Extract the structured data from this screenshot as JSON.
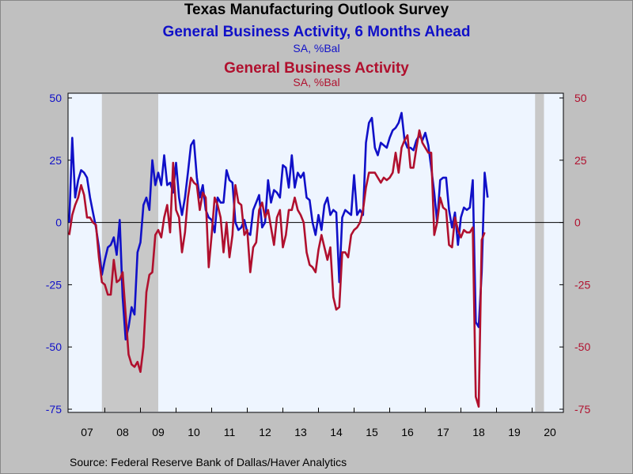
{
  "chart_data": {
    "type": "line",
    "title": "Texas Manufacturing Outlook Survey",
    "series": [
      {
        "name": "General Business Activity, 6 Months Ahead",
        "units": "SA, %Bal",
        "color": "#1010c8",
        "axis": "left",
        "values": [
          0,
          34,
          10,
          17,
          21,
          20,
          18,
          10,
          4,
          -2,
          -10,
          -21,
          -15,
          -10,
          -9,
          -6,
          -13,
          1,
          -30,
          -47,
          -42,
          -34,
          -37,
          -12,
          -8,
          7,
          10,
          5,
          25,
          15,
          20,
          15,
          27,
          15,
          16,
          12,
          24,
          10,
          3,
          10,
          20,
          31,
          33,
          18,
          10,
          15,
          5,
          2,
          1,
          -4,
          10,
          8,
          8,
          21,
          17,
          16,
          0,
          -3,
          -2,
          1,
          -4,
          -5,
          5,
          8,
          11,
          -2,
          0,
          17,
          8,
          13,
          12,
          10,
          23,
          22,
          14,
          27,
          14,
          20,
          18,
          20,
          10,
          9,
          0,
          -5,
          3,
          -3,
          7,
          10,
          3,
          5,
          4,
          -24,
          2,
          5,
          4,
          3,
          19,
          3,
          5,
          3,
          32,
          40,
          42,
          30,
          27,
          32,
          31,
          30,
          34,
          37,
          38,
          40,
          44,
          33,
          30,
          30,
          29,
          33,
          35,
          33,
          36,
          31,
          22,
          12,
          0,
          17,
          18,
          18,
          5,
          -2,
          4,
          -9,
          2,
          6,
          5,
          6,
          17,
          -40,
          -42,
          -20,
          20,
          10
        ]
      },
      {
        "name": "General Business Activity",
        "units": "SA, %Bal",
        "color": "#b0102e",
        "axis": "right",
        "values": [
          -5,
          3,
          7,
          10,
          15,
          11,
          2,
          2,
          0,
          -1,
          -14,
          -24,
          -25,
          -29,
          -29,
          -15,
          -24,
          -23,
          -20,
          -37,
          -53,
          -57,
          -58,
          -56,
          -60,
          -50,
          -28,
          -21,
          -20,
          -5,
          -3,
          -6,
          2,
          7,
          -4,
          24,
          5,
          2,
          -12,
          -4,
          10,
          18,
          16,
          15,
          5,
          12,
          10,
          -18,
          -5,
          10,
          7,
          2,
          -12,
          0,
          -14,
          -5,
          15,
          8,
          7,
          -5,
          -3,
          -20,
          -10,
          -8,
          5,
          8,
          2,
          5,
          -2,
          -9,
          2,
          5,
          -10,
          -5,
          5,
          5,
          10,
          5,
          3,
          0,
          -12,
          -17,
          -18,
          -20,
          -11,
          -5,
          -10,
          -15,
          -10,
          -30,
          -35,
          -34,
          -12,
          -12,
          -14,
          -5,
          -3,
          -2,
          0,
          5,
          14,
          20,
          20,
          20,
          18,
          16,
          18,
          17,
          18,
          20,
          28,
          20,
          30,
          33,
          35,
          22,
          22,
          30,
          37,
          32,
          30,
          28,
          28,
          -5,
          0,
          10,
          6,
          5,
          -9,
          -10,
          2,
          -3,
          -6,
          -3,
          -4,
          -4,
          -2,
          -70,
          -74,
          -7,
          -4
        ]
      }
    ],
    "x_start": "2007-01",
    "x_frequency": "monthly",
    "x_ticks": [
      "07",
      "08",
      "09",
      "10",
      "11",
      "12",
      "13",
      "14",
      "15",
      "16",
      "17",
      "18",
      "19",
      "20"
    ],
    "ylim": [
      -75,
      50
    ],
    "y_ticks_left": [
      "50",
      "25",
      "0",
      "-25",
      "-50",
      "-75"
    ],
    "y_ticks_right": [
      "50",
      "25",
      "0",
      "-25",
      "-50",
      "-75"
    ],
    "recessions": [
      [
        "2007-12",
        "2009-06"
      ],
      [
        "2020-02",
        "2020-04"
      ]
    ],
    "zero_line": true
  },
  "header": {
    "title": "Texas Manufacturing Outlook Survey",
    "series1_title": "General Business Activity, 6 Months Ahead",
    "series1_units": "SA, %Bal",
    "series2_title": "General Business Activity",
    "series2_units": "SA, %Bal"
  },
  "footer": {
    "source": "Source:  Federal Reserve Bank of Dallas/Haver Analytics"
  },
  "colors": {
    "plot_bg": "#eef5ff",
    "recession": "#c8c8c8",
    "page_bg": "#c0c0c0"
  }
}
